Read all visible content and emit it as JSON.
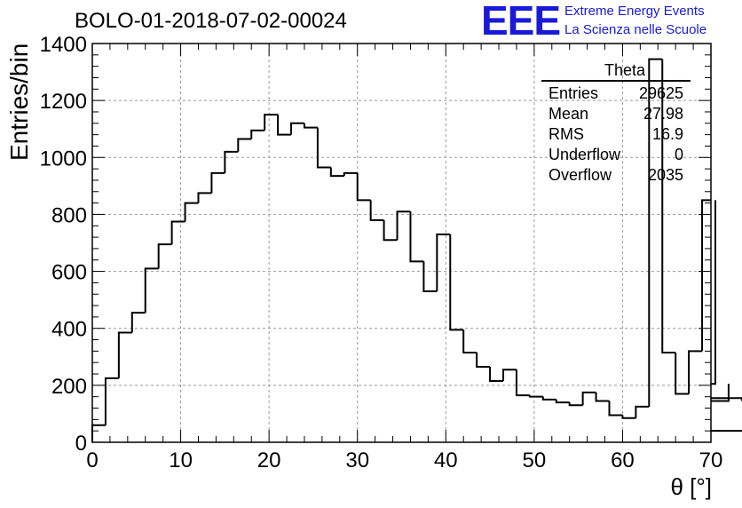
{
  "chart_title": "BOLO-01-2018-07-02-00024",
  "logo": {
    "mark": "EEE",
    "line1": "Extreme Energy Events",
    "line2": "La Scienza nelle Scuole"
  },
  "stats_box": {
    "title": "Theta",
    "rows": [
      {
        "label": "Entries",
        "value": "29625"
      },
      {
        "label": "Mean",
        "value": "27.98"
      },
      {
        "label": "RMS",
        "value": "16.9"
      },
      {
        "label": "Underflow",
        "value": "0"
      },
      {
        "label": "Overflow",
        "value": "2035"
      }
    ]
  },
  "chart_data": {
    "type": "bar",
    "style": "step-histogram",
    "title": "BOLO-01-2018-07-02-00024",
    "xlabel": "θ [°]",
    "ylabel": "Entries/bin",
    "xlim": [
      0,
      70
    ],
    "ylim": [
      0,
      1400
    ],
    "x_ticks": [
      0,
      10,
      20,
      30,
      40,
      50,
      60,
      70
    ],
    "y_ticks": [
      0,
      200,
      400,
      600,
      800,
      1000,
      1200,
      1400
    ],
    "grid": true,
    "bin_width": 1.5,
    "bin_edges_start": 0,
    "values": [
      60,
      225,
      385,
      455,
      610,
      695,
      775,
      840,
      875,
      945,
      1020,
      1065,
      1095,
      1150,
      1080,
      1120,
      1105,
      965,
      935,
      945,
      850,
      780,
      710,
      810,
      635,
      530,
      730,
      395,
      315,
      265,
      215,
      255,
      165,
      160,
      150,
      140,
      130,
      175,
      145,
      95,
      85,
      125,
      1345,
      315,
      170,
      320,
      850,
      205,
      145,
      155,
      40
    ],
    "colors": {
      "line": "#000000",
      "grid": "#999999",
      "logo": "#1a1ad6"
    }
  }
}
